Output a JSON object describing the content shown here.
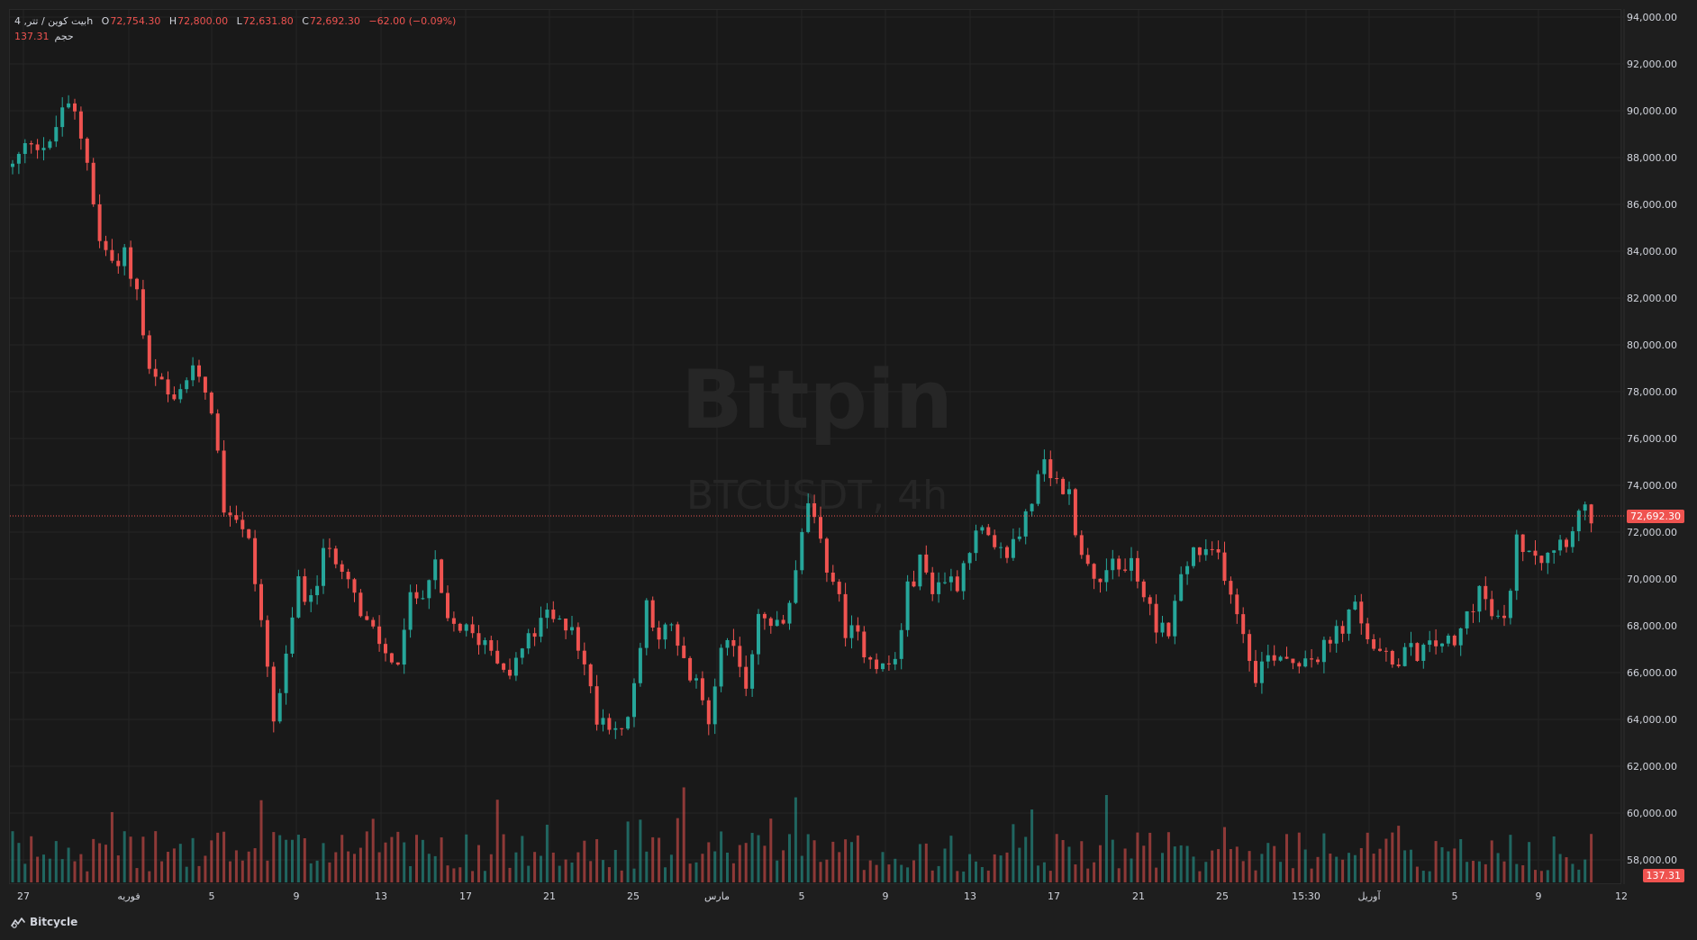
{
  "header": {
    "symbol": "بیت کوین / تتر, 4h",
    "open_label": "O",
    "open": "72,754.30",
    "high_label": "H",
    "high": "72,800.00",
    "low_label": "L",
    "low": "72,631.80",
    "close_label": "C",
    "close": "72,692.30",
    "change": "−62.00 (−0.09%)",
    "volume_label": "حجم",
    "volume": "137.31"
  },
  "watermark": {
    "brand": "Bitpin",
    "symbol": "BTCUSDT, 4h"
  },
  "footer": {
    "brand": "Bitcycle"
  },
  "colors": {
    "up": "#26a69a",
    "down": "#ef5350",
    "background": "#191919",
    "grid": "#252525",
    "text": "#d1d4dc"
  },
  "chart_data": {
    "type": "candlestick",
    "interval": "4h",
    "price_axis_labels": [
      "94,000.00",
      "92,000.00",
      "90,000.00",
      "88,000.00",
      "86,000.00",
      "84,000.00",
      "82,000.00",
      "80,000.00",
      "78,000.00",
      "76,000.00",
      "74,000.00",
      "72,000.00",
      "70,000.00",
      "68,000.00",
      "66,000.00",
      "64,000.00",
      "62,000.00",
      "60,000.00",
      "58,000.00"
    ],
    "ylim": [
      56000,
      94600
    ],
    "last_price": 72692.3,
    "last_price_label": "72,692.30",
    "last_volume_label": "137.31",
    "time_axis_labels": [
      "27",
      "فوریه",
      "5",
      "9",
      "13",
      "17",
      "21",
      "25",
      "مارس",
      "5",
      "9",
      "13",
      "17",
      "21",
      "25",
      "15:30",
      "آوریل",
      "5",
      "9",
      "12"
    ],
    "close_path": [
      [
        0,
        87600
      ],
      [
        3,
        88800
      ],
      [
        6,
        88400
      ],
      [
        8,
        90200
      ],
      [
        10,
        89800
      ],
      [
        12,
        88000
      ],
      [
        14,
        84400
      ],
      [
        16,
        83600
      ],
      [
        18,
        84000
      ],
      [
        20,
        82200
      ],
      [
        22,
        78700
      ],
      [
        24,
        78200
      ],
      [
        26,
        77300
      ],
      [
        28,
        78600
      ],
      [
        30,
        78800
      ],
      [
        32,
        77400
      ],
      [
        34,
        73200
      ],
      [
        36,
        72700
      ],
      [
        38,
        71500
      ],
      [
        40,
        68300
      ],
      [
        42,
        64000
      ],
      [
        44,
        66400
      ],
      [
        46,
        70000
      ],
      [
        48,
        68900
      ],
      [
        50,
        71000
      ],
      [
        52,
        71000
      ],
      [
        54,
        70400
      ],
      [
        56,
        68300
      ],
      [
        58,
        67700
      ],
      [
        60,
        66800
      ],
      [
        62,
        66500
      ],
      [
        64,
        69000
      ],
      [
        66,
        69600
      ],
      [
        68,
        70400
      ],
      [
        70,
        68000
      ],
      [
        72,
        68000
      ],
      [
        74,
        67500
      ],
      [
        76,
        67400
      ],
      [
        78,
        66800
      ],
      [
        80,
        66000
      ],
      [
        82,
        67000
      ],
      [
        84,
        67700
      ],
      [
        86,
        68400
      ],
      [
        88,
        68000
      ],
      [
        90,
        68200
      ],
      [
        92,
        66200
      ],
      [
        94,
        64200
      ],
      [
        96,
        64000
      ],
      [
        98,
        63300
      ],
      [
        100,
        65200
      ],
      [
        102,
        69000
      ],
      [
        104,
        67700
      ],
      [
        106,
        67800
      ],
      [
        108,
        66300
      ],
      [
        110,
        65400
      ],
      [
        112,
        64000
      ],
      [
        114,
        67500
      ],
      [
        116,
        66700
      ],
      [
        118,
        65500
      ],
      [
        120,
        68600
      ],
      [
        122,
        68000
      ],
      [
        124,
        68000
      ],
      [
        126,
        70200
      ],
      [
        128,
        73300
      ],
      [
        130,
        71300
      ],
      [
        132,
        70000
      ],
      [
        134,
        67900
      ],
      [
        136,
        67400
      ],
      [
        138,
        66800
      ],
      [
        140,
        66200
      ],
      [
        142,
        66500
      ],
      [
        144,
        69500
      ],
      [
        146,
        70700
      ],
      [
        148,
        69700
      ],
      [
        150,
        70000
      ],
      [
        152,
        69900
      ],
      [
        154,
        71500
      ],
      [
        156,
        72000
      ],
      [
        158,
        71000
      ],
      [
        160,
        71100
      ],
      [
        162,
        72000
      ],
      [
        164,
        73500
      ],
      [
        166,
        74700
      ],
      [
        168,
        74000
      ],
      [
        170,
        73600
      ],
      [
        172,
        71000
      ],
      [
        174,
        70000
      ],
      [
        176,
        70600
      ],
      [
        178,
        70400
      ],
      [
        180,
        70700
      ],
      [
        182,
        69300
      ],
      [
        184,
        68100
      ],
      [
        186,
        67900
      ],
      [
        188,
        70000
      ],
      [
        190,
        71200
      ],
      [
        192,
        70900
      ],
      [
        194,
        71000
      ],
      [
        196,
        69600
      ],
      [
        198,
        67700
      ],
      [
        200,
        66000
      ],
      [
        202,
        66700
      ],
      [
        204,
        66900
      ],
      [
        206,
        66500
      ],
      [
        208,
        66800
      ],
      [
        210,
        66700
      ],
      [
        212,
        67300
      ],
      [
        214,
        68000
      ],
      [
        216,
        68700
      ],
      [
        218,
        67600
      ],
      [
        220,
        66600
      ],
      [
        222,
        66500
      ],
      [
        224,
        66800
      ],
      [
        226,
        66900
      ],
      [
        228,
        67000
      ],
      [
        230,
        67400
      ],
      [
        232,
        67000
      ],
      [
        234,
        68500
      ],
      [
        236,
        69600
      ],
      [
        238,
        68400
      ],
      [
        240,
        68000
      ],
      [
        242,
        71600
      ],
      [
        244,
        71500
      ],
      [
        246,
        71000
      ],
      [
        248,
        71500
      ],
      [
        250,
        71800
      ],
      [
        252,
        72800
      ],
      [
        254,
        72700
      ]
    ]
  }
}
